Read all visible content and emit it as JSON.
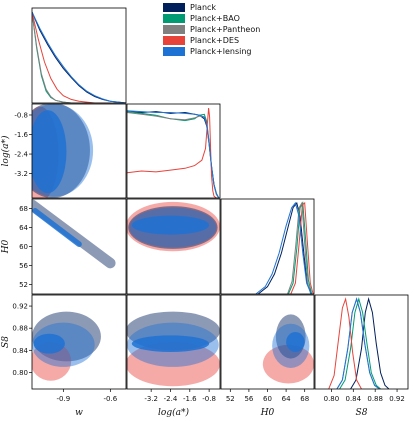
{
  "chart_data": {
    "type": "corner",
    "parameters": [
      {
        "id": "w",
        "label": "w",
        "range": [
          -1.1,
          -0.5
        ],
        "ticks": [
          "-0.9",
          "-0.6"
        ],
        "tick_values": [
          -0.9,
          -0.6
        ]
      },
      {
        "id": "loga",
        "label": "log(a*)",
        "range": [
          -4.2,
          -0.35
        ],
        "ticks": [
          "-3.2",
          "-2.4",
          "-1.6",
          "-0.8"
        ],
        "tick_values": [
          -3.2,
          -2.4,
          -1.6,
          -0.8
        ]
      },
      {
        "id": "H0",
        "label": "H0",
        "range": [
          50,
          70
        ],
        "ticks": [
          "52",
          "56",
          "60",
          "64",
          "68"
        ],
        "tick_values": [
          52,
          56,
          60,
          64,
          68
        ]
      },
      {
        "id": "S8",
        "label": "S8",
        "range": [
          0.77,
          0.94
        ],
        "ticks": [
          "0.80",
          "0.84",
          "0.88",
          "0.92"
        ],
        "tick_values": [
          0.8,
          0.84,
          0.88,
          0.92
        ]
      }
    ],
    "legend": {
      "placement": "top-center",
      "entries": [
        {
          "name": "Planck",
          "color": "#00205c"
        },
        {
          "name": "Planck+BAO",
          "color": "#009b72"
        },
        {
          "name": "Planck+Pantheon",
          "color": "#808080"
        },
        {
          "name": "Planck+DES",
          "color": "#e8433b"
        },
        {
          "name": "Planck+lensing",
          "color": "#1e72d4"
        }
      ]
    },
    "marginals": {
      "w": [
        {
          "series": "Planck",
          "x": [
            -1.1,
            -1.05,
            -1.0,
            -0.95,
            -0.9,
            -0.85,
            -0.8,
            -0.75,
            -0.7,
            -0.65,
            -0.6,
            -0.55,
            -0.5
          ],
          "y": [
            1.0,
            0.8,
            0.64,
            0.5,
            0.38,
            0.28,
            0.19,
            0.12,
            0.07,
            0.04,
            0.02,
            0.01,
            0.0
          ]
        },
        {
          "series": "Planck+BAO",
          "x": [
            -1.1,
            -1.07,
            -1.04,
            -1.01,
            -0.98,
            -0.95,
            -0.9,
            -0.85,
            -0.8,
            -0.7,
            -0.6
          ],
          "y": [
            1.0,
            0.6,
            0.3,
            0.13,
            0.06,
            0.03,
            0.01,
            0.0,
            0.0,
            0.0,
            0.0
          ]
        },
        {
          "series": "Planck+Pantheon",
          "x": [
            -1.1,
            -1.07,
            -1.04,
            -1.01,
            -0.98,
            -0.95,
            -0.9,
            -0.85,
            -0.8,
            -0.7,
            -0.6
          ],
          "y": [
            1.0,
            0.62,
            0.32,
            0.15,
            0.07,
            0.03,
            0.01,
            0.0,
            0.0,
            0.0,
            0.0
          ]
        },
        {
          "series": "Planck+DES",
          "x": [
            -1.1,
            -1.06,
            -1.02,
            -0.98,
            -0.94,
            -0.9,
            -0.85,
            -0.8,
            -0.75,
            -0.7,
            -0.6
          ],
          "y": [
            1.0,
            0.7,
            0.45,
            0.27,
            0.15,
            0.08,
            0.04,
            0.02,
            0.01,
            0.0,
            0.0
          ]
        },
        {
          "series": "Planck+lensing",
          "x": [
            -1.1,
            -1.05,
            -1.0,
            -0.95,
            -0.9,
            -0.85,
            -0.8,
            -0.75,
            -0.7,
            -0.65,
            -0.6,
            -0.55,
            -0.5
          ],
          "y": [
            1.0,
            0.82,
            0.66,
            0.52,
            0.4,
            0.29,
            0.2,
            0.13,
            0.08,
            0.045,
            0.02,
            0.01,
            0.0
          ]
        }
      ],
      "loga": [
        {
          "series": "Planck",
          "x": [
            -4.2,
            -3.6,
            -3.0,
            -2.4,
            -1.8,
            -1.4,
            -1.2,
            -1.0,
            -0.9,
            -0.8,
            -0.7,
            -0.6,
            -0.5,
            -0.4
          ],
          "y": [
            0.96,
            0.95,
            0.96,
            0.94,
            0.95,
            0.93,
            0.92,
            0.88,
            0.8,
            0.6,
            0.35,
            0.15,
            0.05,
            0.0
          ]
        },
        {
          "series": "Planck+BAO",
          "x": [
            -4.2,
            -3.6,
            -3.0,
            -2.4,
            -1.8,
            -1.4,
            -1.2,
            -1.0,
            -0.9,
            -0.8,
            -0.7,
            -0.6,
            -0.5,
            -0.4
          ],
          "y": [
            0.96,
            0.94,
            0.92,
            0.88,
            0.86,
            0.88,
            0.92,
            0.93,
            0.85,
            0.62,
            0.35,
            0.14,
            0.04,
            0.0
          ]
        },
        {
          "series": "Planck+Pantheon",
          "x": [
            -4.2,
            -3.6,
            -3.0,
            -2.4,
            -1.8,
            -1.4,
            -1.2,
            -1.0,
            -0.9,
            -0.8,
            -0.7,
            -0.6,
            -0.5,
            -0.4
          ],
          "y": [
            0.95,
            0.93,
            0.91,
            0.88,
            0.87,
            0.89,
            0.91,
            0.9,
            0.82,
            0.6,
            0.34,
            0.14,
            0.04,
            0.0
          ]
        },
        {
          "series": "Planck+DES",
          "x": [
            -4.2,
            -3.6,
            -3.0,
            -2.4,
            -1.8,
            -1.4,
            -1.1,
            -0.95,
            -0.88,
            -0.82,
            -0.78,
            -0.74,
            -0.7,
            -0.65,
            -0.6,
            -0.5
          ],
          "y": [
            0.28,
            0.3,
            0.29,
            0.31,
            0.33,
            0.36,
            0.42,
            0.55,
            0.8,
            1.0,
            0.9,
            0.55,
            0.25,
            0.08,
            0.02,
            0.0
          ]
        },
        {
          "series": "Planck+lensing",
          "x": [
            -4.2,
            -3.6,
            -3.0,
            -2.4,
            -1.8,
            -1.4,
            -1.2,
            -1.0,
            -0.9,
            -0.8,
            -0.7,
            -0.6,
            -0.5,
            -0.4
          ],
          "y": [
            0.97,
            0.96,
            0.95,
            0.95,
            0.94,
            0.93,
            0.92,
            0.9,
            0.82,
            0.62,
            0.36,
            0.15,
            0.05,
            0.0
          ]
        }
      ],
      "H0": [
        {
          "series": "Planck",
          "x": [
            58,
            60,
            61.5,
            63,
            64.5,
            65.5,
            66.3,
            67,
            67.8,
            68.5,
            69.5
          ],
          "y": [
            0.0,
            0.08,
            0.22,
            0.45,
            0.75,
            0.95,
            1.0,
            0.85,
            0.45,
            0.12,
            0.0
          ]
        },
        {
          "series": "Planck+BAO",
          "x": [
            64.5,
            65.5,
            66.3,
            67.0,
            67.6,
            68.2,
            68.8,
            69.5
          ],
          "y": [
            0.0,
            0.12,
            0.5,
            0.95,
            1.0,
            0.6,
            0.15,
            0.0
          ]
        },
        {
          "series": "Planck+Pantheon",
          "x": [
            64.3,
            65.3,
            66.1,
            66.8,
            67.4,
            68.0,
            68.6,
            69.3
          ],
          "y": [
            0.0,
            0.14,
            0.55,
            0.95,
            1.0,
            0.55,
            0.13,
            0.0
          ]
        },
        {
          "series": "Planck+DES",
          "x": [
            65.0,
            66.0,
            66.8,
            67.5,
            68.0,
            68.6,
            69.2,
            69.8
          ],
          "y": [
            0.0,
            0.12,
            0.55,
            0.98,
            1.0,
            0.55,
            0.12,
            0.0
          ]
        },
        {
          "series": "Planck+lensing",
          "x": [
            57.5,
            59.5,
            61,
            62.5,
            64,
            65.2,
            66.0,
            66.8,
            67.6,
            68.4,
            69.4
          ],
          "y": [
            0.0,
            0.08,
            0.22,
            0.45,
            0.75,
            0.95,
            1.0,
            0.85,
            0.45,
            0.12,
            0.0
          ]
        }
      ],
      "S8": [
        {
          "series": "Planck",
          "x": [
            0.835,
            0.845,
            0.855,
            0.862,
            0.868,
            0.875,
            0.882,
            0.89,
            0.898,
            0.905
          ],
          "y": [
            0.0,
            0.1,
            0.45,
            0.85,
            1.0,
            0.85,
            0.5,
            0.18,
            0.04,
            0.0
          ]
        },
        {
          "series": "Planck+BAO",
          "x": [
            0.815,
            0.825,
            0.835,
            0.843,
            0.85,
            0.857,
            0.865,
            0.873,
            0.882,
            0.89
          ],
          "y": [
            0.0,
            0.1,
            0.45,
            0.85,
            1.0,
            0.85,
            0.5,
            0.18,
            0.04,
            0.0
          ]
        },
        {
          "series": "Planck+Pantheon",
          "x": [
            0.81,
            0.82,
            0.83,
            0.838,
            0.846,
            0.853,
            0.861,
            0.87,
            0.879,
            0.888
          ],
          "y": [
            0.0,
            0.1,
            0.45,
            0.85,
            1.0,
            0.85,
            0.5,
            0.18,
            0.04,
            0.0
          ]
        },
        {
          "series": "Planck+DES",
          "x": [
            0.795,
            0.805,
            0.813,
            0.82,
            0.826,
            0.832,
            0.839,
            0.846,
            0.855
          ],
          "y": [
            0.0,
            0.15,
            0.55,
            0.9,
            1.0,
            0.8,
            0.4,
            0.1,
            0.0
          ]
        },
        {
          "series": "Planck+lensing",
          "x": [
            0.81,
            0.82,
            0.83,
            0.838,
            0.846,
            0.853,
            0.861,
            0.87,
            0.879,
            0.888
          ],
          "y": [
            0.0,
            0.1,
            0.45,
            0.85,
            1.0,
            0.85,
            0.5,
            0.18,
            0.04,
            0.0
          ]
        }
      ]
    },
    "contours": [
      {
        "x": "w",
        "y": "loga",
        "blobs": [
          {
            "series": "Planck+DES",
            "level": "2sigma",
            "cx": -1.05,
            "cy": -2.4,
            "rx": 0.12,
            "ry": 1.95
          },
          {
            "series": "Planck",
            "level": "2sigma",
            "cx": -0.97,
            "cy": -2.25,
            "rx": 0.24,
            "ry": 1.95
          },
          {
            "series": "Planck+lensing",
            "level": "2sigma",
            "cx": -0.96,
            "cy": -2.25,
            "rx": 0.25,
            "ry": 1.9
          },
          {
            "series": "Planck+lensing",
            "level": "1sigma",
            "cx": -1.0,
            "cy": -2.3,
            "rx": 0.12,
            "ry": 1.7
          }
        ]
      },
      {
        "x": "w",
        "y": "H0",
        "blobs": [
          {
            "series": "Planck",
            "level": "2sigma",
            "x1": -1.1,
            "y1": 68.8,
            "x2": -0.6,
            "y2": 56.5,
            "width": 2.2
          },
          {
            "series": "Planck+lensing",
            "level": "1sigma",
            "x1": -1.08,
            "y1": 67.5,
            "x2": -0.8,
            "y2": 60.5,
            "width": 1.2
          }
        ]
      },
      {
        "x": "loga",
        "y": "H0",
        "blobs": [
          {
            "series": "Planck+DES",
            "level": "2sigma",
            "cx": -2.3,
            "cy": 64.2,
            "rx": 1.95,
            "ry": 5.2
          },
          {
            "series": "Planck",
            "level": "2sigma",
            "cx": -2.3,
            "cy": 64.0,
            "rx": 1.85,
            "ry": 4.5
          },
          {
            "series": "Planck+lensing",
            "level": "2sigma",
            "cx": -2.3,
            "cy": 64.0,
            "rx": 1.8,
            "ry": 4.2
          },
          {
            "series": "Planck+lensing",
            "level": "1sigma",
            "cx": -2.4,
            "cy": 64.5,
            "rx": 1.6,
            "ry": 2.0
          }
        ]
      },
      {
        "x": "H0",
        "y": "S8",
        "blobs": [
          {
            "series": "Planck+DES",
            "level": "2sigma",
            "cx": 64.5,
            "cy": 0.815,
            "rx": 5.5,
            "ry": 0.035
          },
          {
            "series": "Planck",
            "level": "2sigma",
            "cx": 65.0,
            "cy": 0.865,
            "rx": 3.2,
            "ry": 0.04
          },
          {
            "series": "Planck+lensing",
            "level": "2sigma",
            "cx": 65.0,
            "cy": 0.848,
            "rx": 4.0,
            "ry": 0.04
          },
          {
            "series": "Planck+lensing",
            "level": "1sigma",
            "cx": 66.0,
            "cy": 0.855,
            "rx": 2.0,
            "ry": 0.018
          }
        ]
      },
      {
        "x": "w",
        "y": "S8",
        "blobs": [
          {
            "series": "Planck",
            "level": "2sigma",
            "cx": -0.88,
            "cy": 0.865,
            "rx": 0.22,
            "ry": 0.045
          },
          {
            "series": "Planck+DES",
            "level": "2sigma",
            "cx": -0.98,
            "cy": 0.82,
            "rx": 0.13,
            "ry": 0.035
          },
          {
            "series": "Planck+lensing",
            "level": "2sigma",
            "cx": -0.9,
            "cy": 0.85,
            "rx": 0.2,
            "ry": 0.04
          },
          {
            "series": "Planck+lensing",
            "level": "1sigma",
            "cx": -0.99,
            "cy": 0.852,
            "rx": 0.1,
            "ry": 0.018
          }
        ]
      },
      {
        "x": "loga",
        "y": "S8",
        "blobs": [
          {
            "series": "Planck",
            "level": "2sigma",
            "cx": -2.3,
            "cy": 0.875,
            "rx": 1.95,
            "ry": 0.035
          },
          {
            "series": "Planck+DES",
            "level": "2sigma",
            "cx": -2.3,
            "cy": 0.815,
            "rx": 1.95,
            "ry": 0.04
          },
          {
            "series": "Planck+lensing",
            "level": "2sigma",
            "cx": -2.3,
            "cy": 0.85,
            "rx": 1.9,
            "ry": 0.04
          },
          {
            "series": "Planck+lensing",
            "level": "1sigma",
            "cx": -2.4,
            "cy": 0.852,
            "rx": 1.6,
            "ry": 0.015
          }
        ]
      }
    ],
    "grid": false
  }
}
